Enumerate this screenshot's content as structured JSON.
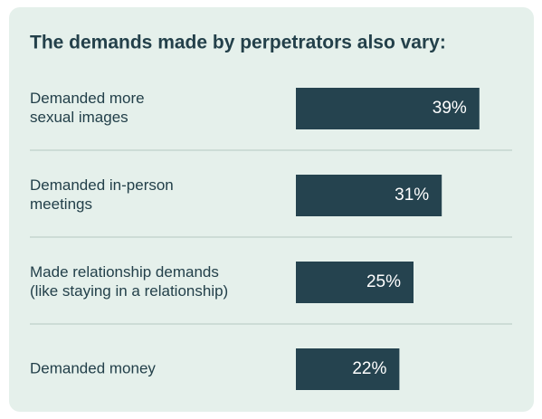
{
  "chart_data": {
    "type": "hbar",
    "title": "The demands made by perpetrators also vary:",
    "categories": [
      [
        "Demanded more",
        "sexual images"
      ],
      [
        "Demanded in-person",
        "meetings"
      ],
      [
        "Made relationship demands",
        "(like staying in a relationship)"
      ],
      [
        "Demanded money"
      ]
    ],
    "values": [
      39,
      31,
      25,
      22
    ],
    "value_labels": [
      "39%",
      "31%",
      "25%",
      "22%"
    ],
    "color": "#25434f"
  }
}
